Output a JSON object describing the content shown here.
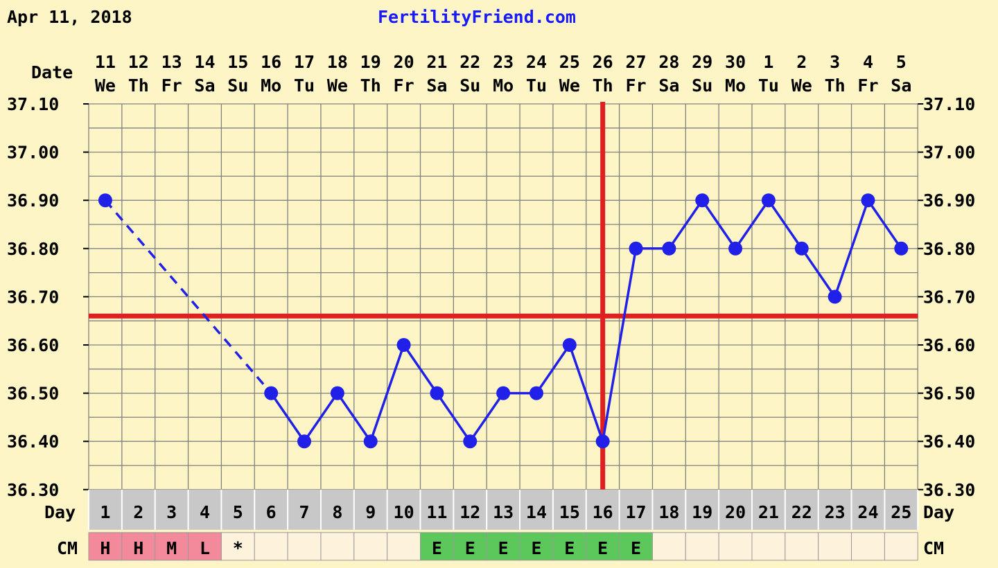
{
  "header": {
    "date": "Apr 11, 2018",
    "site": "FertilityFriend.com"
  },
  "labels": {
    "date_row": "Date",
    "day_row": "Day",
    "cm_row": "CM"
  },
  "colors": {
    "background": "#fdf5c6",
    "grid": "#808080",
    "temp_line": "#2020e8",
    "coverline": "#e02020",
    "day_row_bg": "#c8c8c8",
    "cm_pink": "#f28a9b",
    "cm_green": "#5cc85c",
    "cm_blank": "#fdf2dc",
    "text_blue": "#1a1aff"
  },
  "chart_data": {
    "type": "line",
    "title": "",
    "dates": [
      "11",
      "12",
      "13",
      "14",
      "15",
      "16",
      "17",
      "18",
      "19",
      "20",
      "21",
      "22",
      "23",
      "24",
      "25",
      "26",
      "27",
      "28",
      "29",
      "30",
      "1",
      "2",
      "3",
      "4",
      "5"
    ],
    "weekdays": [
      "We",
      "Th",
      "Fr",
      "Sa",
      "Su",
      "Mo",
      "Tu",
      "We",
      "Th",
      "Fr",
      "Sa",
      "Su",
      "Mo",
      "Tu",
      "We",
      "Th",
      "Fr",
      "Sa",
      "Su",
      "Mo",
      "Tu",
      "We",
      "Th",
      "Fr",
      "Sa"
    ],
    "cycle_days": [
      "1",
      "2",
      "3",
      "4",
      "5",
      "6",
      "7",
      "8",
      "9",
      "10",
      "11",
      "12",
      "13",
      "14",
      "15",
      "16",
      "17",
      "18",
      "19",
      "20",
      "21",
      "22",
      "23",
      "24",
      "25"
    ],
    "y_ticks": [
      "37.10",
      "37.00",
      "36.90",
      "36.80",
      "36.70",
      "36.60",
      "36.50",
      "36.40",
      "36.30"
    ],
    "ylim": [
      36.3,
      37.1
    ],
    "temperatures": [
      36.9,
      null,
      null,
      null,
      null,
      36.5,
      36.4,
      36.5,
      36.4,
      36.6,
      36.5,
      36.4,
      36.5,
      36.5,
      36.6,
      36.4,
      36.8,
      36.8,
      36.9,
      36.8,
      36.9,
      36.8,
      36.7,
      36.9,
      36.8
    ],
    "coverline": 36.66,
    "ovulation_day": 16,
    "cervical_mucus": [
      "H",
      "H",
      "M",
      "L",
      "*",
      "",
      "",
      "",
      "",
      "",
      "E",
      "E",
      "E",
      "E",
      "E",
      "E",
      "E",
      "",
      "",
      "",
      "",
      "",
      "",
      "",
      ""
    ],
    "cm_colors": [
      "pink",
      "pink",
      "pink",
      "pink",
      "blank",
      "blank",
      "blank",
      "blank",
      "blank",
      "blank",
      "green",
      "green",
      "green",
      "green",
      "green",
      "green",
      "green",
      "blank",
      "blank",
      "blank",
      "blank",
      "blank",
      "blank",
      "blank",
      "blank"
    ]
  }
}
